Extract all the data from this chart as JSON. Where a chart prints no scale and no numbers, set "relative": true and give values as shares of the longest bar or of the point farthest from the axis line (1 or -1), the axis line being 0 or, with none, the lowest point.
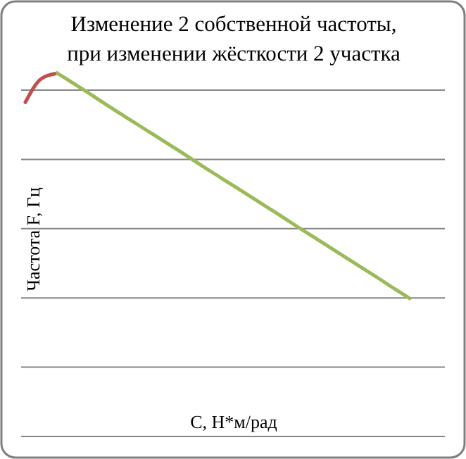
{
  "chart_data": {
    "type": "line",
    "title": "Изменение 2 собственной частоты,\nпри изменении  жёсткости 2 участка",
    "xlabel": "С, Н*м/рад",
    "ylabel": "Частота F, Гц",
    "relative": true,
    "grid": "y",
    "categories": [
      null,
      null,
      null,
      null,
      null,
      null,
      null,
      null,
      null,
      null,
      null,
      null,
      null,
      null,
      null,
      null,
      null,
      null,
      null,
      null,
      null,
      null,
      null,
      null,
      null
    ],
    "series": [
      {
        "color": "#c0504d",
        "values": [
          0.92,
          0.985,
          1.0,
          null,
          null,
          null,
          null,
          null,
          null,
          null,
          null,
          null,
          null,
          null,
          null,
          null,
          null,
          null,
          null,
          null,
          null,
          null,
          null,
          null,
          null
        ]
      },
      {
        "color": "#9bbb59",
        "values": [
          null,
          null,
          1.0,
          0.972,
          0.944,
          0.915,
          0.887,
          0.859,
          0.831,
          0.803,
          0.775,
          0.746,
          0.718,
          0.69,
          0.662,
          0.634,
          0.606,
          0.577,
          0.549,
          0.521,
          0.493,
          0.465,
          0.437,
          0.408,
          0.38
        ]
      }
    ]
  }
}
